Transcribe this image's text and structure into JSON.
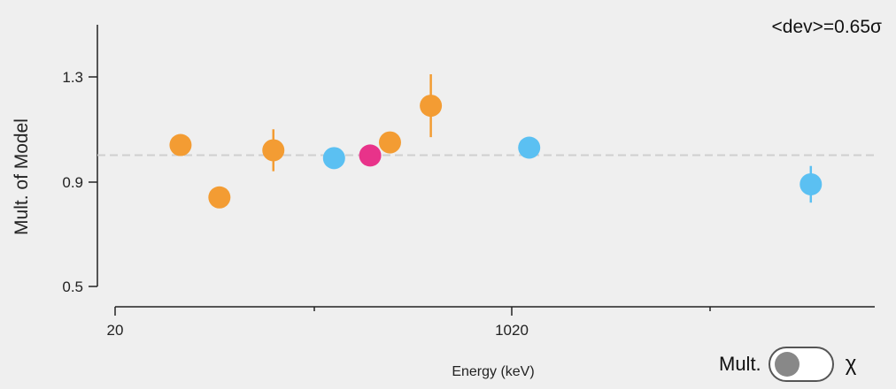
{
  "chart_data": {
    "type": "scatter",
    "annotation": "<dev>=0.65σ",
    "xlabel": "Energy (keV)",
    "ylabel": "Mult. of Model",
    "x_tick_labels": [
      "20",
      "1020"
    ],
    "y_tick_labels": [
      "1.3",
      "0.9",
      "0.5"
    ],
    "ylim": [
      0.5,
      1.42
    ],
    "reference_line": 1.0,
    "grid": false,
    "points": [
      {
        "x": 185,
        "y": 1.04,
        "err": 0.0,
        "color": "#f39c33"
      },
      {
        "x": 283,
        "y": 0.84,
        "err": 0.0,
        "color": "#f39c33"
      },
      {
        "x": 419,
        "y": 1.02,
        "err": 0.08,
        "color": "#f39c33"
      },
      {
        "x": 572,
        "y": 0.99,
        "err": 0.0,
        "color": "#5bc0f2"
      },
      {
        "x": 663,
        "y": 1.0,
        "err": 0.0,
        "color": "#e8338a"
      },
      {
        "x": 713,
        "y": 1.05,
        "err": 0.0,
        "color": "#f39c33"
      },
      {
        "x": 816,
        "y": 1.19,
        "err": 0.12,
        "color": "#f39c33"
      },
      {
        "x": 1064,
        "y": 1.03,
        "err": 0.0,
        "color": "#5bc0f2"
      },
      {
        "x": 1774,
        "y": 0.89,
        "err": 0.07,
        "color": "#5bc0f2"
      }
    ]
  },
  "controls": {
    "toggle_label": "Mult.",
    "toggle_right_label": "χ"
  }
}
